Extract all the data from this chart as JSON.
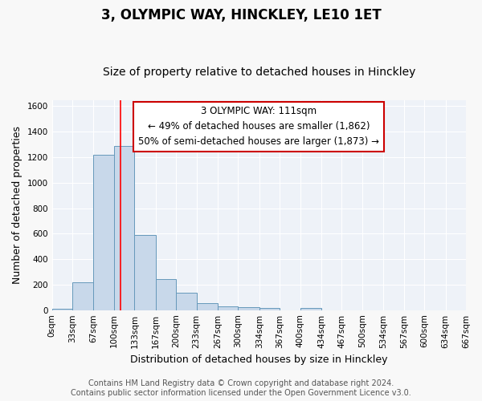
{
  "title": "3, OLYMPIC WAY, HINCKLEY, LE10 1ET",
  "subtitle": "Size of property relative to detached houses in Hinckley",
  "xlabel": "Distribution of detached houses by size in Hinckley",
  "ylabel": "Number of detached properties",
  "bar_color": "#c8d8ea",
  "bar_edge_color": "#6699bb",
  "background_color": "#eef2f8",
  "grid_color": "#ffffff",
  "fig_background": "#f8f8f8",
  "bin_edges": [
    0,
    33,
    67,
    100,
    133,
    167,
    200,
    233,
    267,
    300,
    334,
    367,
    400,
    434,
    467,
    500,
    534,
    567,
    600,
    634,
    667
  ],
  "bin_labels": [
    "0sqm",
    "33sqm",
    "67sqm",
    "100sqm",
    "133sqm",
    "167sqm",
    "200sqm",
    "233sqm",
    "267sqm",
    "300sqm",
    "334sqm",
    "367sqm",
    "400sqm",
    "434sqm",
    "467sqm",
    "500sqm",
    "534sqm",
    "567sqm",
    "600sqm",
    "634sqm",
    "667sqm"
  ],
  "counts": [
    10,
    220,
    1220,
    1290,
    590,
    245,
    135,
    55,
    30,
    25,
    15,
    0,
    15,
    0,
    0,
    0,
    0,
    0,
    0,
    0
  ],
  "ylim": [
    0,
    1650
  ],
  "yticks": [
    0,
    200,
    400,
    600,
    800,
    1000,
    1200,
    1400,
    1600
  ],
  "red_line_x": 111,
  "annotation_title": "3 OLYMPIC WAY: 111sqm",
  "annotation_line1": "← 49% of detached houses are smaller (1,862)",
  "annotation_line2": "50% of semi-detached houses are larger (1,873) →",
  "annotation_box_color": "#ffffff",
  "annotation_box_edge": "#cc0000",
  "footer_line1": "Contains HM Land Registry data © Crown copyright and database right 2024.",
  "footer_line2": "Contains public sector information licensed under the Open Government Licence v3.0.",
  "title_fontsize": 12,
  "subtitle_fontsize": 10,
  "axis_label_fontsize": 9,
  "tick_fontsize": 7.5,
  "annotation_fontsize": 8.5,
  "footer_fontsize": 7
}
